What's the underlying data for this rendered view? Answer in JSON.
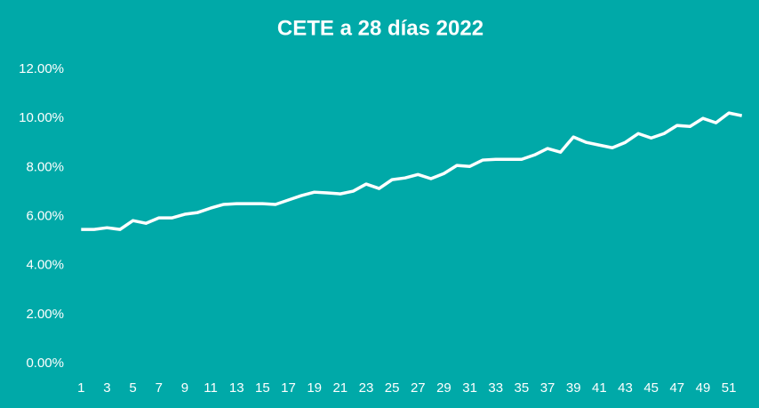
{
  "chart_data": {
    "type": "line",
    "title": "CETE a 28 días 2022",
    "categories": [
      "1",
      null,
      "3",
      null,
      "5",
      null,
      "7",
      null,
      "9",
      null,
      "11",
      null,
      "13",
      null,
      "15",
      null,
      "17",
      null,
      "19",
      null,
      "21",
      null,
      "23",
      null,
      "25",
      null,
      "27",
      null,
      "29",
      null,
      "31",
      null,
      "33",
      null,
      "35",
      null,
      "37",
      null,
      "39",
      null,
      "41",
      null,
      "43",
      null,
      "45",
      null,
      "47",
      null,
      "49",
      null,
      "51",
      null
    ],
    "series": [
      {
        "color": "#ffffff",
        "values": [
          5.47,
          5.47,
          5.54,
          5.47,
          5.83,
          5.72,
          5.94,
          5.94,
          6.09,
          6.16,
          6.34,
          6.49,
          6.52,
          6.52,
          6.52,
          6.49,
          6.67,
          6.85,
          6.99,
          6.96,
          6.92,
          7.03,
          7.32,
          7.14,
          7.5,
          7.57,
          7.71,
          7.54,
          7.75,
          8.08,
          8.04,
          8.3,
          8.33,
          8.33,
          8.33,
          8.51,
          8.77,
          8.62,
          9.24,
          9.02,
          8.91,
          8.8,
          9.02,
          9.38,
          9.2,
          9.38,
          9.71,
          9.67,
          10.0,
          9.82,
          10.22,
          10.11
        ]
      }
    ],
    "ylim": [
      0,
      12
    ],
    "yticks": [
      {
        "value": 0,
        "label": "0.00%"
      },
      {
        "value": 2,
        "label": "2.00%"
      },
      {
        "value": 4,
        "label": "4.00%"
      },
      {
        "value": 6,
        "label": "6.00%"
      },
      {
        "value": 8,
        "label": "8.00%"
      },
      {
        "value": 10,
        "label": "10.00%"
      },
      {
        "value": 12,
        "label": "12.00%"
      }
    ]
  }
}
